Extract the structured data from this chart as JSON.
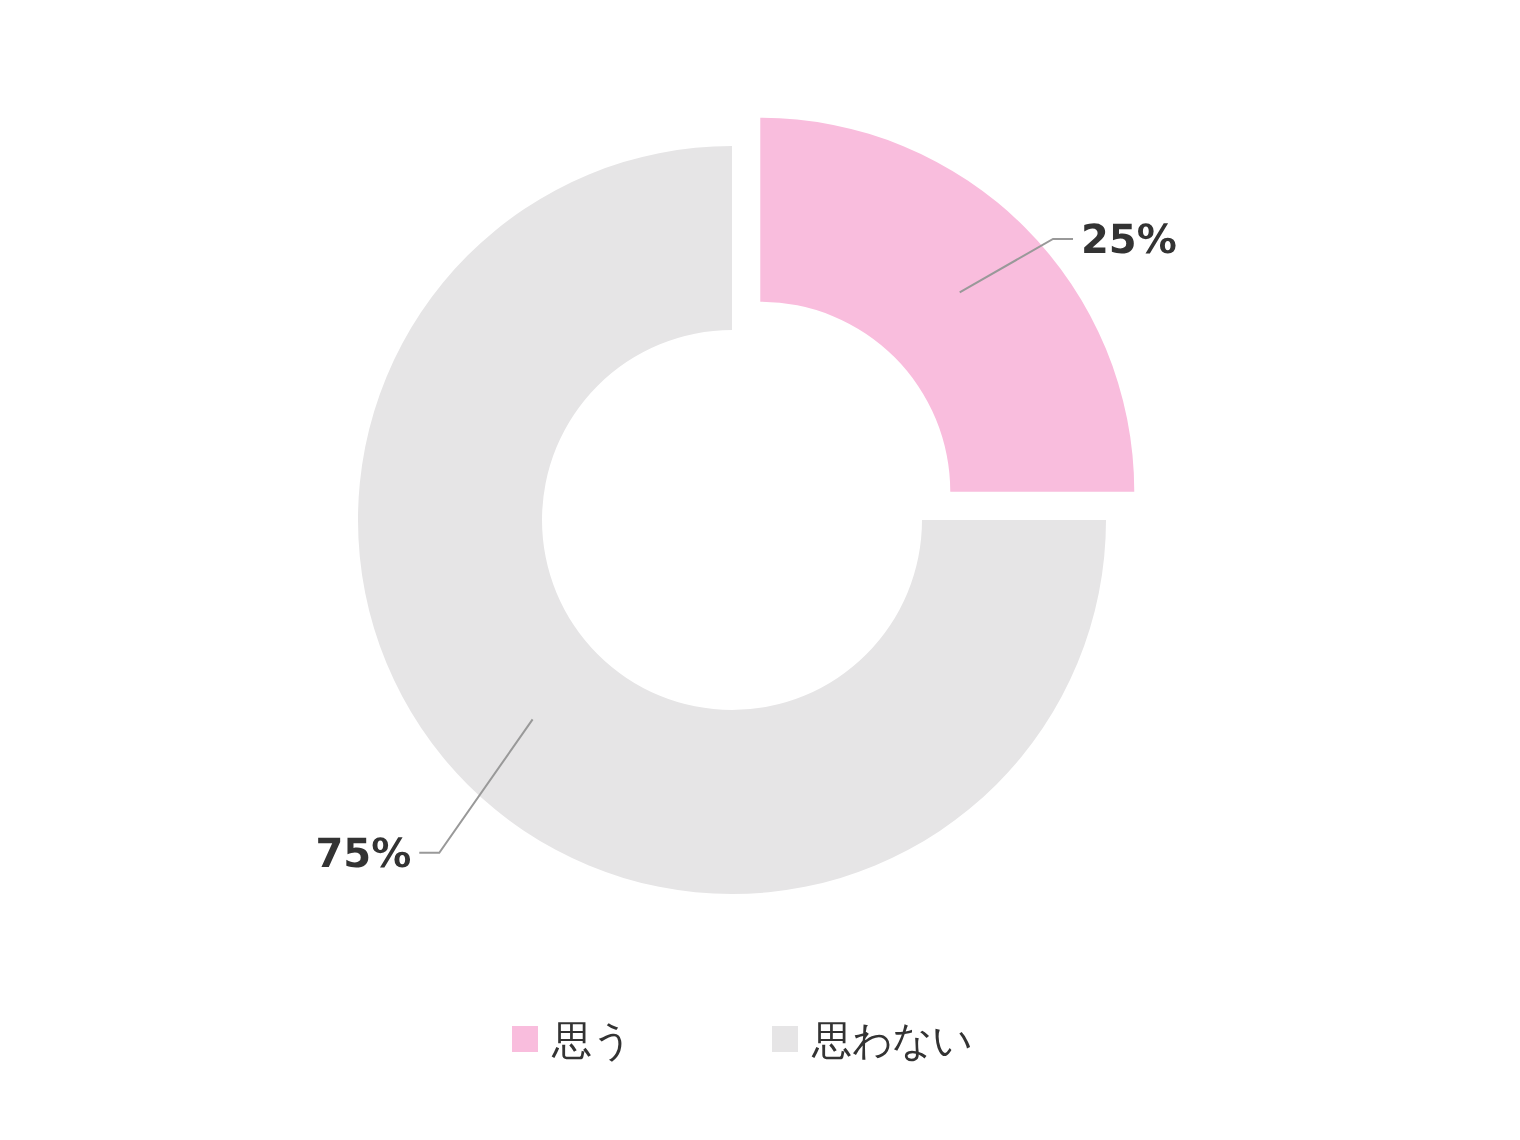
{
  "chart_data": {
    "type": "donut",
    "categories": [
      "思う",
      "思わない"
    ],
    "values": [
      25,
      75
    ],
    "colors": [
      "#f9bddd",
      "#e6e5e6"
    ],
    "value_labels": [
      "25%",
      "75%"
    ],
    "legend": "bottom"
  }
}
